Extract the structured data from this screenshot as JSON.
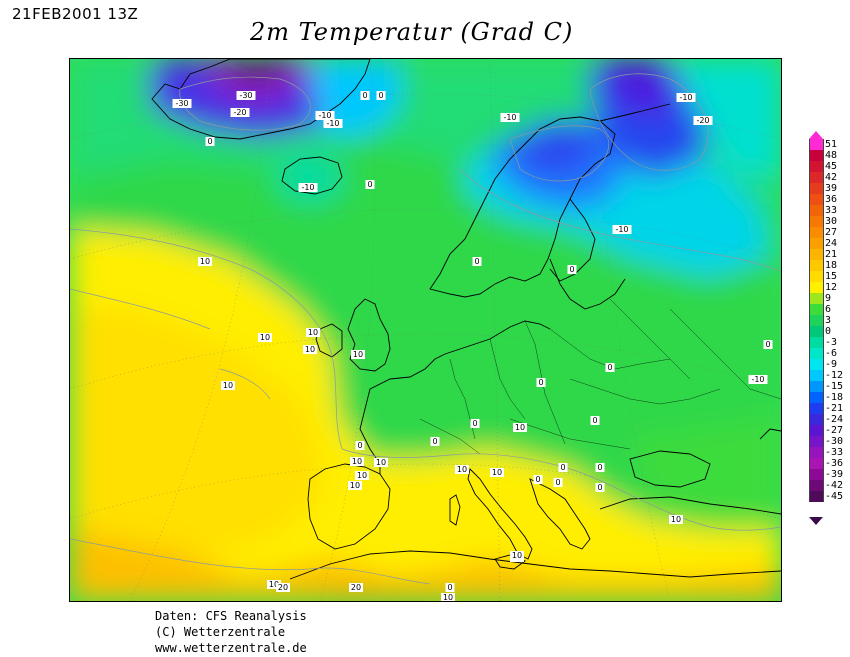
{
  "header": {
    "date_stamp": "21FEB2001 13Z",
    "title": "2m Temperatur (Grad C)"
  },
  "footer": {
    "line1": "Daten: CFS Reanalysis",
    "line2": "(C) Wetterzentrale",
    "line3": "www.wetterzentrale.de"
  },
  "legend": {
    "values": [
      "51",
      "48",
      "45",
      "42",
      "39",
      "36",
      "33",
      "30",
      "27",
      "24",
      "21",
      "18",
      "15",
      "12",
      "9",
      "6",
      "3",
      "0",
      "-3",
      "-6",
      "-9",
      "-12",
      "-15",
      "-18",
      "-21",
      "-24",
      "-27",
      "-30",
      "-33",
      "-36",
      "-39",
      "-42",
      "-45"
    ],
    "colors": [
      "#ff2ad4",
      "#c8003c",
      "#d21432",
      "#dc2828",
      "#e63c1e",
      "#ee5014",
      "#f2640a",
      "#f67800",
      "#fa8c00",
      "#fca000",
      "#fdb400",
      "#fec800",
      "#ffdc00",
      "#fff000",
      "#9ee61e",
      "#3cdc3c",
      "#1ed25a",
      "#00c878",
      "#00dca0",
      "#00e6c8",
      "#00e6f0",
      "#00c8ff",
      "#0096ff",
      "#0064ff",
      "#1e3cf0",
      "#3c28dc",
      "#5a14d2",
      "#7814c8",
      "#9614be",
      "#aa14b4",
      "#8c0a96",
      "#6e0a78",
      "#500a5a"
    ]
  },
  "map": {
    "contour_labels": [
      "-30",
      "-30",
      "-20",
      "-10",
      "-10",
      "0",
      "0",
      "0",
      "-10",
      "-20",
      "-10",
      "0",
      "-10",
      "0",
      "-10",
      "10",
      "0",
      "0",
      "10",
      "10",
      "10",
      "10",
      "10",
      "0",
      "0",
      "0",
      "0",
      "0",
      "0",
      "10",
      "10",
      "10",
      "10",
      "10",
      "10",
      "10",
      "0",
      "0",
      "0",
      "0",
      "10",
      "0",
      "10",
      "0",
      "-10",
      "0",
      "10",
      "20",
      "20",
      "10",
      "10"
    ]
  }
}
